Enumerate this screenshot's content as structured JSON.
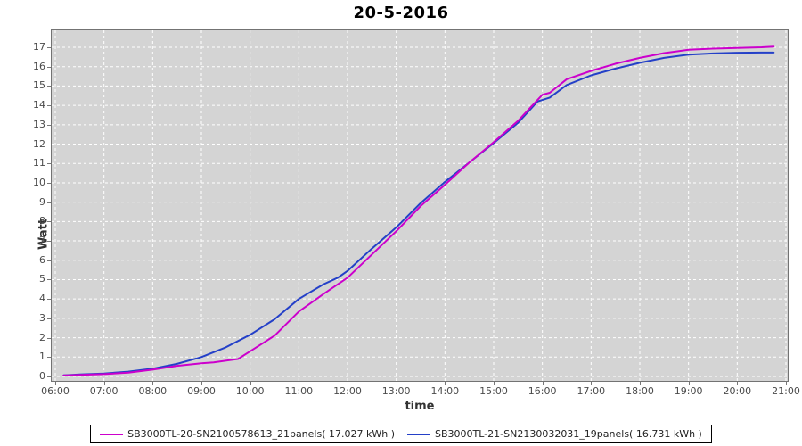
{
  "chart": {
    "title": "20-5-2016",
    "x_label": "time",
    "y_label": "Watt",
    "plot_bg_color": "#d4d4d4",
    "grid_color": "#ffffff",
    "plot_border_color": "#737373",
    "tick_label_color": "#4a4a4a",
    "x_ticks": [
      "06:00",
      "07:00",
      "08:00",
      "09:00",
      "10:00",
      "11:00",
      "12:00",
      "13:00",
      "14:00",
      "15:00",
      "16:00",
      "17:00",
      "18:00",
      "19:00",
      "20:00",
      "21:00"
    ],
    "y_ticks": [
      0,
      1,
      2,
      3,
      4,
      5,
      6,
      7,
      8,
      9,
      10,
      11,
      12,
      13,
      14,
      15,
      16,
      17
    ]
  },
  "chart_data": {
    "type": "line",
    "title": "20-5-2016",
    "xlabel": "time",
    "ylabel": "Watt",
    "x_unit": "hour-of-day",
    "xlim": [
      6,
      21
    ],
    "ylim": [
      0,
      17.9
    ],
    "grid": true,
    "legend_position": "bottom",
    "series": [
      {
        "name": "SB3000TL-21-SN2130032031_19panels( 16.731 kWh )",
        "color": "#2440c8",
        "final_kwh": 16.731,
        "x": [
          6.17,
          6.5,
          7.0,
          7.5,
          8.0,
          8.5,
          9.0,
          9.5,
          10.0,
          10.5,
          11.0,
          11.5,
          11.8,
          12.0,
          12.5,
          13.0,
          13.5,
          14.0,
          14.5,
          15.0,
          15.5,
          15.9,
          16.15,
          16.5,
          17.0,
          17.5,
          18.0,
          18.5,
          19.0,
          19.5,
          20.0,
          20.5,
          20.75
        ],
        "y": [
          0.06,
          0.1,
          0.15,
          0.25,
          0.4,
          0.65,
          1.0,
          1.5,
          2.15,
          2.95,
          4.0,
          4.75,
          5.1,
          5.45,
          6.6,
          7.7,
          8.95,
          10.05,
          11.05,
          12.05,
          13.1,
          14.2,
          14.4,
          15.05,
          15.55,
          15.9,
          16.2,
          16.45,
          16.62,
          16.68,
          16.72,
          16.73,
          16.73
        ]
      },
      {
        "name": "SB3000TL-20-SN2100578613_21panels( 17.027 kWh )",
        "color": "#cc00cc",
        "final_kwh": 17.027,
        "x": [
          6.17,
          6.5,
          7.0,
          7.5,
          8.0,
          8.5,
          9.0,
          9.25,
          9.75,
          10.0,
          10.5,
          11.0,
          11.5,
          12.0,
          12.5,
          13.0,
          13.5,
          14.0,
          14.5,
          15.0,
          15.5,
          16.0,
          16.15,
          16.5,
          17.0,
          17.5,
          18.0,
          18.5,
          19.0,
          19.5,
          20.0,
          20.5,
          20.75
        ],
        "y": [
          0.05,
          0.08,
          0.12,
          0.2,
          0.35,
          0.55,
          0.68,
          0.73,
          0.9,
          1.3,
          2.1,
          3.35,
          4.25,
          5.1,
          6.3,
          7.5,
          8.8,
          9.9,
          11.05,
          12.1,
          13.2,
          14.55,
          14.65,
          15.35,
          15.78,
          16.15,
          16.45,
          16.7,
          16.87,
          16.93,
          16.97,
          17.0,
          17.03
        ]
      }
    ]
  },
  "legend": {
    "items": [
      {
        "label": "SB3000TL-20-SN2100578613_21panels( 17.027 kWh )",
        "color": "#cc00cc"
      },
      {
        "label": "SB3000TL-21-SN2130032031_19panels( 16.731 kWh )",
        "color": "#2440c8"
      }
    ]
  }
}
